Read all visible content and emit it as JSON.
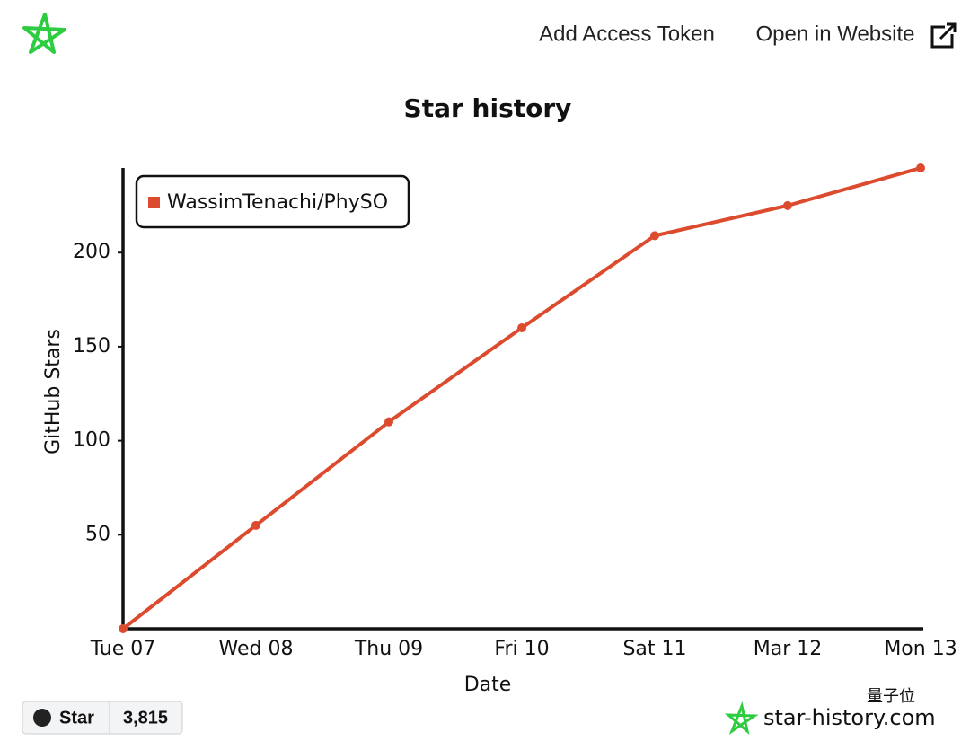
{
  "header": {
    "add_token": "Add Access Token",
    "open_website": "Open in Website"
  },
  "chart_data": {
    "type": "line",
    "title": "Star history",
    "x_label": "Date",
    "y_label": "GitHub Stars",
    "categories": [
      "Tue 07",
      "Wed 08",
      "Thu 09",
      "Fri 10",
      "Sat 11",
      "Mar 12",
      "Mon 13"
    ],
    "series": [
      {
        "name": "WassimTenachi/PhySO",
        "color": "#dd4b2f",
        "values": [
          0,
          55,
          110,
          160,
          209,
          225,
          245
        ]
      }
    ],
    "ylim": [
      0,
      245
    ],
    "yticks": [
      50,
      100,
      150,
      200
    ],
    "legend": "top-left"
  },
  "footer": {
    "star_button": "Star",
    "star_count": "3,815",
    "site": "star-history.com",
    "watermark": "量子位"
  }
}
